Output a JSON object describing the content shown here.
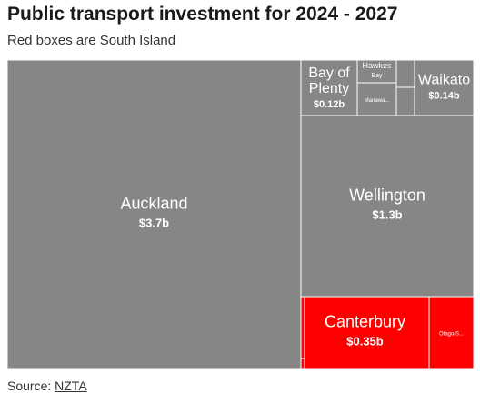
{
  "header": {
    "title": "Public transport investment for 2024 - 2027",
    "subtitle": "Red boxes are South Island"
  },
  "footer": {
    "source_label": "Source:",
    "source_link": "NZTA"
  },
  "colors": {
    "north_island": "#878585",
    "south_island": "#ff0000",
    "border": "#ffffff"
  },
  "chart_data": {
    "type": "treemap",
    "title": "Public transport investment for 2024 - 2027",
    "subtitle": "Red boxes are South Island",
    "unit": "$ billion",
    "regions": [
      {
        "name": "Auckland",
        "label": "$3.7b",
        "value": 3.7,
        "island": "North"
      },
      {
        "name": "Wellington",
        "label": "$1.3b",
        "value": 1.3,
        "island": "North"
      },
      {
        "name": "Canterbury",
        "label": "$0.35b",
        "value": 0.35,
        "island": "South"
      },
      {
        "name": "Waikato",
        "label": "$0.14b",
        "value": 0.14,
        "island": "North"
      },
      {
        "name": "Bay of Plenty",
        "label": "$0.12b",
        "value": 0.12,
        "island": "North"
      },
      {
        "name": "Otago/S...",
        "label": "",
        "value": 0.1,
        "island": "South"
      },
      {
        "name": "Hawkes Bay",
        "label": "",
        "value": 0.04,
        "island": "North"
      },
      {
        "name": "Manawa...",
        "label": "",
        "value": 0.035,
        "island": "North"
      },
      {
        "name": "",
        "label": "",
        "value": 0.02,
        "island": "North"
      },
      {
        "name": "",
        "label": "",
        "value": 0.015,
        "island": "North"
      },
      {
        "name": "",
        "label": "",
        "value": 0.004,
        "island": "South"
      },
      {
        "name": "",
        "label": "",
        "value": 0.002,
        "island": "South"
      }
    ]
  }
}
